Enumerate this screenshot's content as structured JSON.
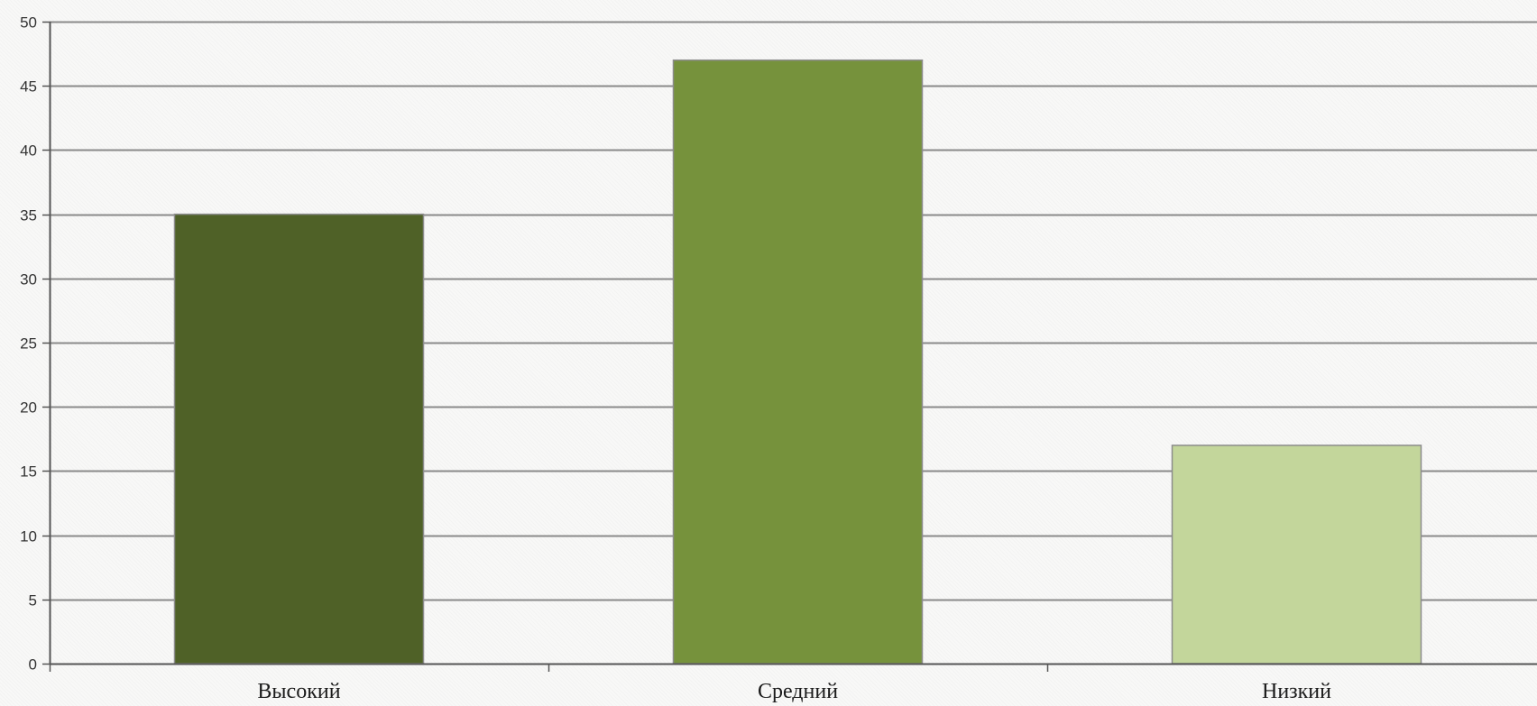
{
  "chart_data": {
    "type": "bar",
    "categories": [
      "Высокий",
      "Средний",
      "Низкий"
    ],
    "values": [
      35,
      47,
      17
    ],
    "colors": [
      "#4f6127",
      "#76923c",
      "#c3d69b"
    ],
    "title": "",
    "xlabel": "",
    "ylabel": "",
    "ylim": [
      0,
      50
    ],
    "yticks": [
      "0",
      "5",
      "10",
      "15",
      "20",
      "25",
      "30",
      "35",
      "40",
      "45",
      "50"
    ],
    "grid": true,
    "legend": "none"
  }
}
